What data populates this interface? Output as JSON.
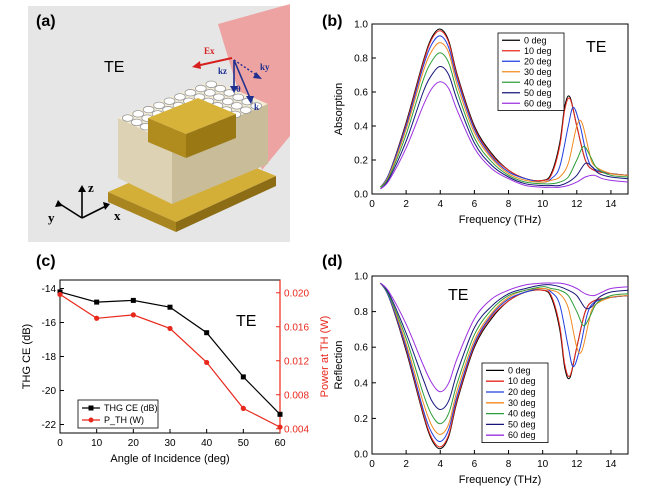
{
  "figure": {
    "panels": {
      "a": {
        "label": "(a)",
        "mode": "TE",
        "field_labels": {
          "E": "Ex",
          "kz": "kz",
          "ky": "ky",
          "theta": "θ",
          "k": "k"
        },
        "axes_labels": {
          "x": "x",
          "y": "y",
          "z": "z"
        },
        "colors": {
          "background": "#e6e6e6",
          "gold": "#c9a227",
          "substrate": "#efe6cf",
          "plane": "#f08c8c",
          "e_field": "#d62020",
          "k_vec": "#1f2f8f"
        }
      },
      "b": {
        "label": "(b)",
        "mode": "TE"
      },
      "c": {
        "label": "(c)",
        "mode": "TE"
      },
      "d": {
        "label": "(d)",
        "mode": "TE"
      }
    }
  },
  "chart_data": [
    {
      "id": "b",
      "type": "line",
      "title": "",
      "xlabel": "Frequency (THz)",
      "ylabel": "Absorption",
      "xlim": [
        0,
        15
      ],
      "ylim": [
        0.0,
        1.0
      ],
      "xticks": [
        0,
        2,
        4,
        6,
        8,
        10,
        12,
        14
      ],
      "yticks": [
        0.0,
        0.2,
        0.4,
        0.6,
        0.8,
        1.0
      ],
      "legend_position": "top-right",
      "series": [
        {
          "name": "0 deg",
          "color": "#000000",
          "x": [
            0.5,
            1,
            2,
            3,
            3.5,
            4,
            4.5,
            5,
            6,
            7,
            8,
            9,
            10,
            10.5,
            11,
            11.3,
            11.6,
            12,
            12.5,
            13,
            14,
            15
          ],
          "y": [
            0.04,
            0.12,
            0.42,
            0.78,
            0.92,
            0.97,
            0.9,
            0.7,
            0.4,
            0.24,
            0.14,
            0.09,
            0.08,
            0.12,
            0.3,
            0.52,
            0.57,
            0.4,
            0.2,
            0.14,
            0.12,
            0.11
          ]
        },
        {
          "name": "10 deg",
          "color": "#e8281c",
          "x": [
            0.5,
            1,
            2,
            3,
            3.5,
            4,
            4.5,
            5,
            6,
            7,
            8,
            9,
            10,
            10.5,
            11,
            11.3,
            11.6,
            12,
            12.5,
            13,
            14,
            15
          ],
          "y": [
            0.04,
            0.12,
            0.41,
            0.77,
            0.91,
            0.96,
            0.89,
            0.69,
            0.39,
            0.23,
            0.14,
            0.09,
            0.08,
            0.11,
            0.28,
            0.5,
            0.56,
            0.4,
            0.2,
            0.14,
            0.12,
            0.11
          ]
        },
        {
          "name": "20 deg",
          "color": "#1f3fe0",
          "x": [
            0.5,
            1,
            2,
            3,
            3.5,
            4,
            4.5,
            5,
            6,
            7,
            8,
            9,
            10,
            10.5,
            11,
            11.5,
            11.8,
            12.2,
            12.6,
            13,
            14,
            15
          ],
          "y": [
            0.04,
            0.12,
            0.4,
            0.75,
            0.88,
            0.93,
            0.86,
            0.67,
            0.38,
            0.22,
            0.13,
            0.09,
            0.07,
            0.09,
            0.16,
            0.4,
            0.51,
            0.4,
            0.22,
            0.15,
            0.12,
            0.11
          ]
        },
        {
          "name": "30 deg",
          "color": "#f28a1e",
          "x": [
            0.5,
            1,
            2,
            3,
            3.5,
            4,
            4.5,
            5,
            6,
            7,
            8,
            9,
            10,
            10.5,
            11,
            11.5,
            12,
            12.3,
            12.7,
            13,
            14,
            15
          ],
          "y": [
            0.04,
            0.11,
            0.38,
            0.72,
            0.84,
            0.89,
            0.83,
            0.64,
            0.36,
            0.21,
            0.12,
            0.08,
            0.07,
            0.08,
            0.1,
            0.18,
            0.4,
            0.42,
            0.26,
            0.17,
            0.12,
            0.11
          ]
        },
        {
          "name": "40 deg",
          "color": "#2e9e3a",
          "x": [
            0.5,
            1,
            2,
            3,
            3.5,
            4,
            4.5,
            5,
            6,
            7,
            8,
            9,
            10,
            10.5,
            11,
            11.5,
            12,
            12.4,
            12.8,
            13.2,
            14,
            15
          ],
          "y": [
            0.04,
            0.1,
            0.35,
            0.67,
            0.78,
            0.83,
            0.77,
            0.6,
            0.33,
            0.19,
            0.11,
            0.07,
            0.06,
            0.06,
            0.07,
            0.1,
            0.2,
            0.28,
            0.22,
            0.15,
            0.11,
            0.1
          ]
        },
        {
          "name": "50 deg",
          "color": "#17157a",
          "x": [
            0.5,
            1,
            2,
            3,
            3.5,
            4,
            4.5,
            5,
            6,
            7,
            8,
            9,
            10,
            10.5,
            11,
            11.5,
            12,
            12.5,
            12.9,
            13.3,
            14,
            15
          ],
          "y": [
            0.03,
            0.09,
            0.31,
            0.6,
            0.7,
            0.75,
            0.7,
            0.55,
            0.3,
            0.17,
            0.1,
            0.06,
            0.05,
            0.05,
            0.05,
            0.07,
            0.11,
            0.18,
            0.16,
            0.12,
            0.1,
            0.09
          ]
        },
        {
          "name": "60 deg",
          "color": "#9b30e0",
          "x": [
            0.5,
            1,
            2,
            3,
            3.5,
            4,
            4.5,
            5,
            6,
            7,
            8,
            9,
            10,
            10.5,
            11,
            11.5,
            12,
            12.5,
            13,
            13.5,
            14,
            15
          ],
          "y": [
            0.03,
            0.08,
            0.27,
            0.52,
            0.62,
            0.66,
            0.62,
            0.49,
            0.27,
            0.15,
            0.09,
            0.05,
            0.04,
            0.04,
            0.04,
            0.05,
            0.07,
            0.1,
            0.11,
            0.09,
            0.08,
            0.07
          ]
        }
      ]
    },
    {
      "id": "c",
      "type": "line",
      "title": "",
      "xlabel": "Angle of Incidence (deg)",
      "ylabel": "THG CE (dB)",
      "y2label": "Power at TH (W)",
      "xlim": [
        0,
        60
      ],
      "ylim": [
        -22.5,
        -13.5
      ],
      "y2lim": [
        0.0035,
        0.0215
      ],
      "xticks": [
        0,
        10,
        20,
        30,
        40,
        50,
        60
      ],
      "yticks": [
        -22,
        -20,
        -18,
        -16,
        -14
      ],
      "y2ticks": [
        0.004,
        0.008,
        0.012,
        0.016,
        0.02
      ],
      "y2tick_labels": [
        "0.004",
        "0.008",
        "0.012",
        "0.016",
        "0.020"
      ],
      "legend_position": "bottom-left",
      "series": [
        {
          "name": "THG CE (dB)",
          "color": "#000000",
          "marker": "square",
          "axis": "left",
          "x": [
            0,
            10,
            20,
            30,
            40,
            50,
            60
          ],
          "y": [
            -14.2,
            -14.8,
            -14.7,
            -15.1,
            -16.6,
            -19.2,
            -21.4
          ]
        },
        {
          "name": "P_TH (W)",
          "color": "#e8281c",
          "marker": "circle",
          "axis": "right",
          "x": [
            0,
            10,
            20,
            30,
            40,
            50,
            60
          ],
          "y": [
            0.0198,
            0.017,
            0.0174,
            0.0158,
            0.0118,
            0.0064,
            0.0042
          ]
        }
      ]
    },
    {
      "id": "d",
      "type": "line",
      "title": "",
      "xlabel": "Frequency (THz)",
      "ylabel": "Reflection",
      "xlim": [
        0,
        15
      ],
      "ylim": [
        0.0,
        1.0
      ],
      "xticks": [
        0,
        2,
        4,
        6,
        8,
        10,
        12,
        14
      ],
      "yticks": [
        0.0,
        0.2,
        0.4,
        0.6,
        0.8,
        1.0
      ],
      "legend_position": "bottom-center",
      "series": [
        {
          "name": "0 deg",
          "color": "#000000",
          "x": [
            0.5,
            1,
            2,
            3,
            3.5,
            4,
            4.5,
            5,
            6,
            7,
            8,
            9,
            10,
            10.5,
            11,
            11.3,
            11.6,
            12,
            12.5,
            13,
            14,
            15
          ],
          "y": [
            0.96,
            0.88,
            0.58,
            0.22,
            0.08,
            0.03,
            0.1,
            0.3,
            0.6,
            0.76,
            0.86,
            0.91,
            0.92,
            0.88,
            0.7,
            0.48,
            0.43,
            0.6,
            0.8,
            0.86,
            0.88,
            0.89
          ]
        },
        {
          "name": "10 deg",
          "color": "#e8281c",
          "x": [
            0.5,
            1,
            2,
            3,
            3.5,
            4,
            4.5,
            5,
            6,
            7,
            8,
            9,
            10,
            10.5,
            11,
            11.3,
            11.6,
            12,
            12.5,
            13,
            14,
            15
          ],
          "y": [
            0.96,
            0.88,
            0.59,
            0.23,
            0.09,
            0.04,
            0.11,
            0.31,
            0.61,
            0.77,
            0.86,
            0.91,
            0.92,
            0.89,
            0.72,
            0.5,
            0.44,
            0.6,
            0.8,
            0.86,
            0.88,
            0.89
          ]
        },
        {
          "name": "20 deg",
          "color": "#1f3fe0",
          "x": [
            0.5,
            1,
            2,
            3,
            3.5,
            4,
            4.5,
            5,
            6,
            7,
            8,
            9,
            10,
            10.5,
            11,
            11.5,
            11.8,
            12.2,
            12.6,
            13,
            14,
            15
          ],
          "y": [
            0.96,
            0.88,
            0.6,
            0.25,
            0.12,
            0.07,
            0.14,
            0.33,
            0.62,
            0.78,
            0.87,
            0.91,
            0.93,
            0.91,
            0.84,
            0.6,
            0.49,
            0.6,
            0.78,
            0.85,
            0.88,
            0.89
          ]
        },
        {
          "name": "30 deg",
          "color": "#f28a1e",
          "x": [
            0.5,
            1,
            2,
            3,
            3.5,
            4,
            4.5,
            5,
            6,
            7,
            8,
            9,
            10,
            10.5,
            11,
            11.5,
            12,
            12.3,
            12.7,
            13,
            14,
            15
          ],
          "y": [
            0.96,
            0.89,
            0.62,
            0.29,
            0.16,
            0.11,
            0.17,
            0.36,
            0.64,
            0.79,
            0.88,
            0.92,
            0.93,
            0.92,
            0.9,
            0.82,
            0.6,
            0.58,
            0.74,
            0.83,
            0.88,
            0.89
          ]
        },
        {
          "name": "40 deg",
          "color": "#2e9e3a",
          "x": [
            0.5,
            1,
            2,
            3,
            3.5,
            4,
            4.5,
            5,
            6,
            7,
            8,
            9,
            10,
            10.5,
            11,
            11.5,
            12,
            12.4,
            12.8,
            13.2,
            14,
            15
          ],
          "y": [
            0.96,
            0.89,
            0.65,
            0.34,
            0.22,
            0.17,
            0.23,
            0.4,
            0.67,
            0.81,
            0.89,
            0.92,
            0.94,
            0.93,
            0.92,
            0.89,
            0.8,
            0.72,
            0.78,
            0.85,
            0.89,
            0.9
          ]
        },
        {
          "name": "50 deg",
          "color": "#17157a",
          "x": [
            0.5,
            1,
            2,
            3,
            3.5,
            4,
            4.5,
            5,
            6,
            7,
            8,
            9,
            10,
            10.5,
            11,
            11.5,
            12,
            12.5,
            12.9,
            13.3,
            14,
            15
          ],
          "y": [
            0.96,
            0.9,
            0.68,
            0.42,
            0.3,
            0.25,
            0.3,
            0.46,
            0.71,
            0.83,
            0.9,
            0.93,
            0.95,
            0.95,
            0.94,
            0.92,
            0.89,
            0.82,
            0.83,
            0.88,
            0.91,
            0.92
          ]
        },
        {
          "name": "60 deg",
          "color": "#9b30e0",
          "x": [
            0.5,
            1,
            2,
            3,
            3.5,
            4,
            4.5,
            5,
            6,
            7,
            8,
            9,
            10,
            10.5,
            11,
            11.5,
            12,
            12.5,
            13,
            13.5,
            14,
            15
          ],
          "y": [
            0.96,
            0.91,
            0.73,
            0.5,
            0.4,
            0.35,
            0.4,
            0.54,
            0.76,
            0.87,
            0.92,
            0.95,
            0.96,
            0.96,
            0.96,
            0.95,
            0.93,
            0.9,
            0.89,
            0.91,
            0.93,
            0.94
          ]
        }
      ]
    }
  ]
}
